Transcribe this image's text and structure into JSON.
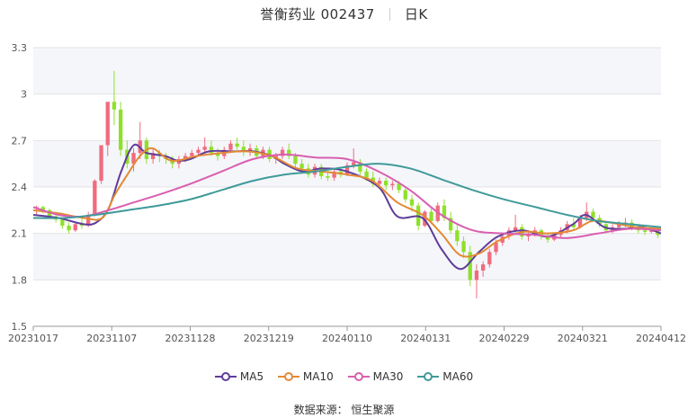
{
  "header": {
    "stock_name_code": "誉衡药业 002437",
    "period": "日K"
  },
  "source_label": "数据来源：",
  "source_value": "恒生聚源",
  "colors": {
    "up": "#f06b7f",
    "down": "#8fe02a",
    "band": "#f5f6fa",
    "grid": "#e3e3e3",
    "ma5": "#5e3c99",
    "ma10": "#e38a34",
    "ma30": "#d95fb0",
    "ma60": "#3f9a9a"
  },
  "chart_data": {
    "type": "candlestick",
    "title": "誉衡药业 002437",
    "ylim": [
      1.5,
      3.3
    ],
    "yticks": [
      1.5,
      1.8,
      2.1,
      2.4,
      2.7,
      3,
      3.3
    ],
    "xtick_labels": [
      "20231017",
      "20231107",
      "20231128",
      "20231219",
      "20240110",
      "20240131",
      "20240229",
      "20240321",
      "20240412"
    ],
    "legend": [
      "MA5",
      "MA10",
      "MA30",
      "MA60"
    ],
    "candles": [
      [
        2.26,
        2.28,
        2.22,
        2.27
      ],
      [
        2.27,
        2.28,
        2.23,
        2.25
      ],
      [
        2.25,
        2.26,
        2.2,
        2.21
      ],
      [
        2.21,
        2.23,
        2.17,
        2.19
      ],
      [
        2.19,
        2.2,
        2.13,
        2.15
      ],
      [
        2.15,
        2.17,
        2.1,
        2.12
      ],
      [
        2.12,
        2.17,
        2.11,
        2.16
      ],
      [
        2.16,
        2.2,
        2.13,
        2.15
      ],
      [
        2.15,
        2.24,
        2.14,
        2.22
      ],
      [
        2.22,
        2.45,
        2.21,
        2.44
      ],
      [
        2.44,
        2.67,
        2.42,
        2.67
      ],
      [
        2.67,
        2.95,
        2.6,
        2.95
      ],
      [
        2.95,
        3.15,
        2.8,
        2.9
      ],
      [
        2.9,
        2.95,
        2.6,
        2.64
      ],
      [
        2.64,
        2.7,
        2.52,
        2.55
      ],
      [
        2.55,
        2.65,
        2.5,
        2.62
      ],
      [
        2.62,
        2.82,
        2.58,
        2.7
      ],
      [
        2.7,
        2.72,
        2.55,
        2.58
      ],
      [
        2.58,
        2.65,
        2.55,
        2.62
      ],
      [
        2.62,
        2.64,
        2.56,
        2.6
      ],
      [
        2.6,
        2.62,
        2.55,
        2.58
      ],
      [
        2.58,
        2.6,
        2.52,
        2.55
      ],
      [
        2.55,
        2.6,
        2.52,
        2.58
      ],
      [
        2.58,
        2.62,
        2.56,
        2.6
      ],
      [
        2.6,
        2.64,
        2.58,
        2.62
      ],
      [
        2.62,
        2.66,
        2.6,
        2.64
      ],
      [
        2.64,
        2.72,
        2.62,
        2.66
      ],
      [
        2.66,
        2.7,
        2.6,
        2.62
      ],
      [
        2.62,
        2.65,
        2.57,
        2.6
      ],
      [
        2.6,
        2.66,
        2.58,
        2.64
      ],
      [
        2.64,
        2.7,
        2.62,
        2.68
      ],
      [
        2.68,
        2.72,
        2.64,
        2.66
      ],
      [
        2.66,
        2.7,
        2.6,
        2.63
      ],
      [
        2.63,
        2.68,
        2.6,
        2.65
      ],
      [
        2.65,
        2.67,
        2.58,
        2.6
      ],
      [
        2.6,
        2.66,
        2.58,
        2.64
      ],
      [
        2.64,
        2.66,
        2.56,
        2.58
      ],
      [
        2.58,
        2.62,
        2.55,
        2.6
      ],
      [
        2.6,
        2.66,
        2.58,
        2.64
      ],
      [
        2.64,
        2.68,
        2.58,
        2.6
      ],
      [
        2.6,
        2.62,
        2.52,
        2.55
      ],
      [
        2.55,
        2.58,
        2.5,
        2.52
      ],
      [
        2.52,
        2.55,
        2.46,
        2.48
      ],
      [
        2.48,
        2.55,
        2.46,
        2.53
      ],
      [
        2.53,
        2.55,
        2.45,
        2.47
      ],
      [
        2.47,
        2.5,
        2.44,
        2.46
      ],
      [
        2.46,
        2.52,
        2.44,
        2.5
      ],
      [
        2.5,
        2.53,
        2.46,
        2.48
      ],
      [
        2.48,
        2.56,
        2.47,
        2.54
      ],
      [
        2.54,
        2.65,
        2.52,
        2.56
      ],
      [
        2.56,
        2.58,
        2.48,
        2.5
      ],
      [
        2.5,
        2.52,
        2.44,
        2.46
      ],
      [
        2.46,
        2.5,
        2.4,
        2.42
      ],
      [
        2.42,
        2.46,
        2.39,
        2.44
      ],
      [
        2.44,
        2.46,
        2.38,
        2.41
      ],
      [
        2.41,
        2.44,
        2.38,
        2.42
      ],
      [
        2.42,
        2.44,
        2.36,
        2.38
      ],
      [
        2.38,
        2.4,
        2.3,
        2.32
      ],
      [
        2.32,
        2.35,
        2.24,
        2.28
      ],
      [
        2.28,
        2.3,
        2.12,
        2.15
      ],
      [
        2.15,
        2.25,
        2.14,
        2.24
      ],
      [
        2.24,
        2.26,
        2.16,
        2.18
      ],
      [
        2.18,
        2.3,
        2.17,
        2.28
      ],
      [
        2.28,
        2.32,
        2.18,
        2.2
      ],
      [
        2.2,
        2.24,
        2.1,
        2.12
      ],
      [
        2.12,
        2.16,
        2.02,
        2.05
      ],
      [
        2.05,
        2.08,
        1.94,
        1.98
      ],
      [
        1.98,
        2.02,
        1.76,
        1.8
      ],
      [
        1.8,
        1.9,
        1.68,
        1.86
      ],
      [
        1.86,
        1.92,
        1.82,
        1.9
      ],
      [
        1.9,
        2.0,
        1.88,
        1.98
      ],
      [
        1.98,
        2.06,
        1.96,
        2.04
      ],
      [
        2.04,
        2.1,
        2.02,
        2.08
      ],
      [
        2.08,
        2.14,
        2.06,
        2.12
      ],
      [
        2.12,
        2.22,
        2.1,
        2.14
      ],
      [
        2.14,
        2.16,
        2.06,
        2.08
      ],
      [
        2.08,
        2.12,
        2.05,
        2.1
      ],
      [
        2.1,
        2.14,
        2.08,
        2.12
      ],
      [
        2.12,
        2.13,
        2.06,
        2.08
      ],
      [
        2.08,
        2.1,
        2.04,
        2.06
      ],
      [
        2.06,
        2.1,
        2.05,
        2.09
      ],
      [
        2.09,
        2.14,
        2.07,
        2.12
      ],
      [
        2.12,
        2.18,
        2.1,
        2.16
      ],
      [
        2.16,
        2.2,
        2.12,
        2.14
      ],
      [
        2.14,
        2.22,
        2.13,
        2.2
      ],
      [
        2.2,
        2.3,
        2.18,
        2.24
      ],
      [
        2.24,
        2.26,
        2.18,
        2.2
      ],
      [
        2.2,
        2.22,
        2.14,
        2.16
      ],
      [
        2.16,
        2.18,
        2.1,
        2.12
      ],
      [
        2.12,
        2.16,
        2.1,
        2.14
      ],
      [
        2.14,
        2.18,
        2.12,
        2.16
      ],
      [
        2.16,
        2.2,
        2.14,
        2.17
      ],
      [
        2.17,
        2.19,
        2.12,
        2.14
      ],
      [
        2.14,
        2.16,
        2.1,
        2.12
      ],
      [
        2.12,
        2.14,
        2.09,
        2.11
      ],
      [
        2.11,
        2.14,
        2.1,
        2.12
      ],
      [
        2.12,
        2.13,
        2.07,
        2.09
      ]
    ],
    "ma": {
      "MA5": [
        [
          0,
          2.22
        ],
        [
          0.04,
          2.2
        ],
        [
          0.08,
          2.16
        ],
        [
          0.1,
          2.17
        ],
        [
          0.12,
          2.26
        ],
        [
          0.14,
          2.5
        ],
        [
          0.16,
          2.67
        ],
        [
          0.18,
          2.62
        ],
        [
          0.21,
          2.6
        ],
        [
          0.23,
          2.57
        ],
        [
          0.25,
          2.58
        ],
        [
          0.28,
          2.63
        ],
        [
          0.32,
          2.63
        ],
        [
          0.35,
          2.63
        ],
        [
          0.38,
          2.6
        ],
        [
          0.4,
          2.55
        ],
        [
          0.43,
          2.5
        ],
        [
          0.46,
          2.52
        ],
        [
          0.5,
          2.5
        ],
        [
          0.55,
          2.4
        ],
        [
          0.58,
          2.21
        ],
        [
          0.62,
          2.2
        ],
        [
          0.65,
          2.0
        ],
        [
          0.68,
          1.87
        ],
        [
          0.71,
          1.98
        ],
        [
          0.74,
          2.08
        ],
        [
          0.78,
          2.12
        ],
        [
          0.82,
          2.08
        ],
        [
          0.86,
          2.16
        ],
        [
          0.88,
          2.22
        ],
        [
          0.91,
          2.14
        ],
        [
          0.94,
          2.13
        ],
        [
          0.97,
          2.14
        ],
        [
          1.0,
          2.1
        ]
      ],
      "MA10": [
        [
          0,
          2.25
        ],
        [
          0.04,
          2.23
        ],
        [
          0.08,
          2.2
        ],
        [
          0.11,
          2.2
        ],
        [
          0.13,
          2.35
        ],
        [
          0.15,
          2.48
        ],
        [
          0.17,
          2.6
        ],
        [
          0.19,
          2.65
        ],
        [
          0.22,
          2.57
        ],
        [
          0.26,
          2.6
        ],
        [
          0.3,
          2.62
        ],
        [
          0.34,
          2.63
        ],
        [
          0.38,
          2.6
        ],
        [
          0.42,
          2.52
        ],
        [
          0.46,
          2.5
        ],
        [
          0.5,
          2.48
        ],
        [
          0.54,
          2.44
        ],
        [
          0.58,
          2.3
        ],
        [
          0.62,
          2.22
        ],
        [
          0.65,
          2.1
        ],
        [
          0.68,
          1.96
        ],
        [
          0.71,
          1.97
        ],
        [
          0.74,
          2.05
        ],
        [
          0.78,
          2.11
        ],
        [
          0.82,
          2.1
        ],
        [
          0.86,
          2.12
        ],
        [
          0.89,
          2.18
        ],
        [
          0.92,
          2.17
        ],
        [
          0.96,
          2.14
        ],
        [
          1.0,
          2.13
        ]
      ],
      "MA30": [
        [
          0,
          2.27
        ],
        [
          0.04,
          2.22
        ],
        [
          0.08,
          2.21
        ],
        [
          0.12,
          2.25
        ],
        [
          0.16,
          2.3
        ],
        [
          0.2,
          2.35
        ],
        [
          0.25,
          2.42
        ],
        [
          0.3,
          2.5
        ],
        [
          0.35,
          2.58
        ],
        [
          0.4,
          2.61
        ],
        [
          0.45,
          2.59
        ],
        [
          0.5,
          2.58
        ],
        [
          0.55,
          2.5
        ],
        [
          0.6,
          2.38
        ],
        [
          0.65,
          2.22
        ],
        [
          0.7,
          2.12
        ],
        [
          0.75,
          2.1
        ],
        [
          0.8,
          2.09
        ],
        [
          0.85,
          2.07
        ],
        [
          0.9,
          2.1
        ],
        [
          0.95,
          2.13
        ],
        [
          1.0,
          2.12
        ]
      ],
      "MA60": [
        [
          0,
          2.2
        ],
        [
          0.05,
          2.2
        ],
        [
          0.1,
          2.22
        ],
        [
          0.15,
          2.25
        ],
        [
          0.2,
          2.28
        ],
        [
          0.25,
          2.32
        ],
        [
          0.3,
          2.38
        ],
        [
          0.35,
          2.44
        ],
        [
          0.4,
          2.48
        ],
        [
          0.45,
          2.5
        ],
        [
          0.5,
          2.53
        ],
        [
          0.55,
          2.55
        ],
        [
          0.6,
          2.52
        ],
        [
          0.65,
          2.45
        ],
        [
          0.7,
          2.38
        ],
        [
          0.75,
          2.32
        ],
        [
          0.8,
          2.27
        ],
        [
          0.85,
          2.22
        ],
        [
          0.9,
          2.18
        ],
        [
          0.95,
          2.16
        ],
        [
          1.0,
          2.14
        ]
      ]
    }
  }
}
